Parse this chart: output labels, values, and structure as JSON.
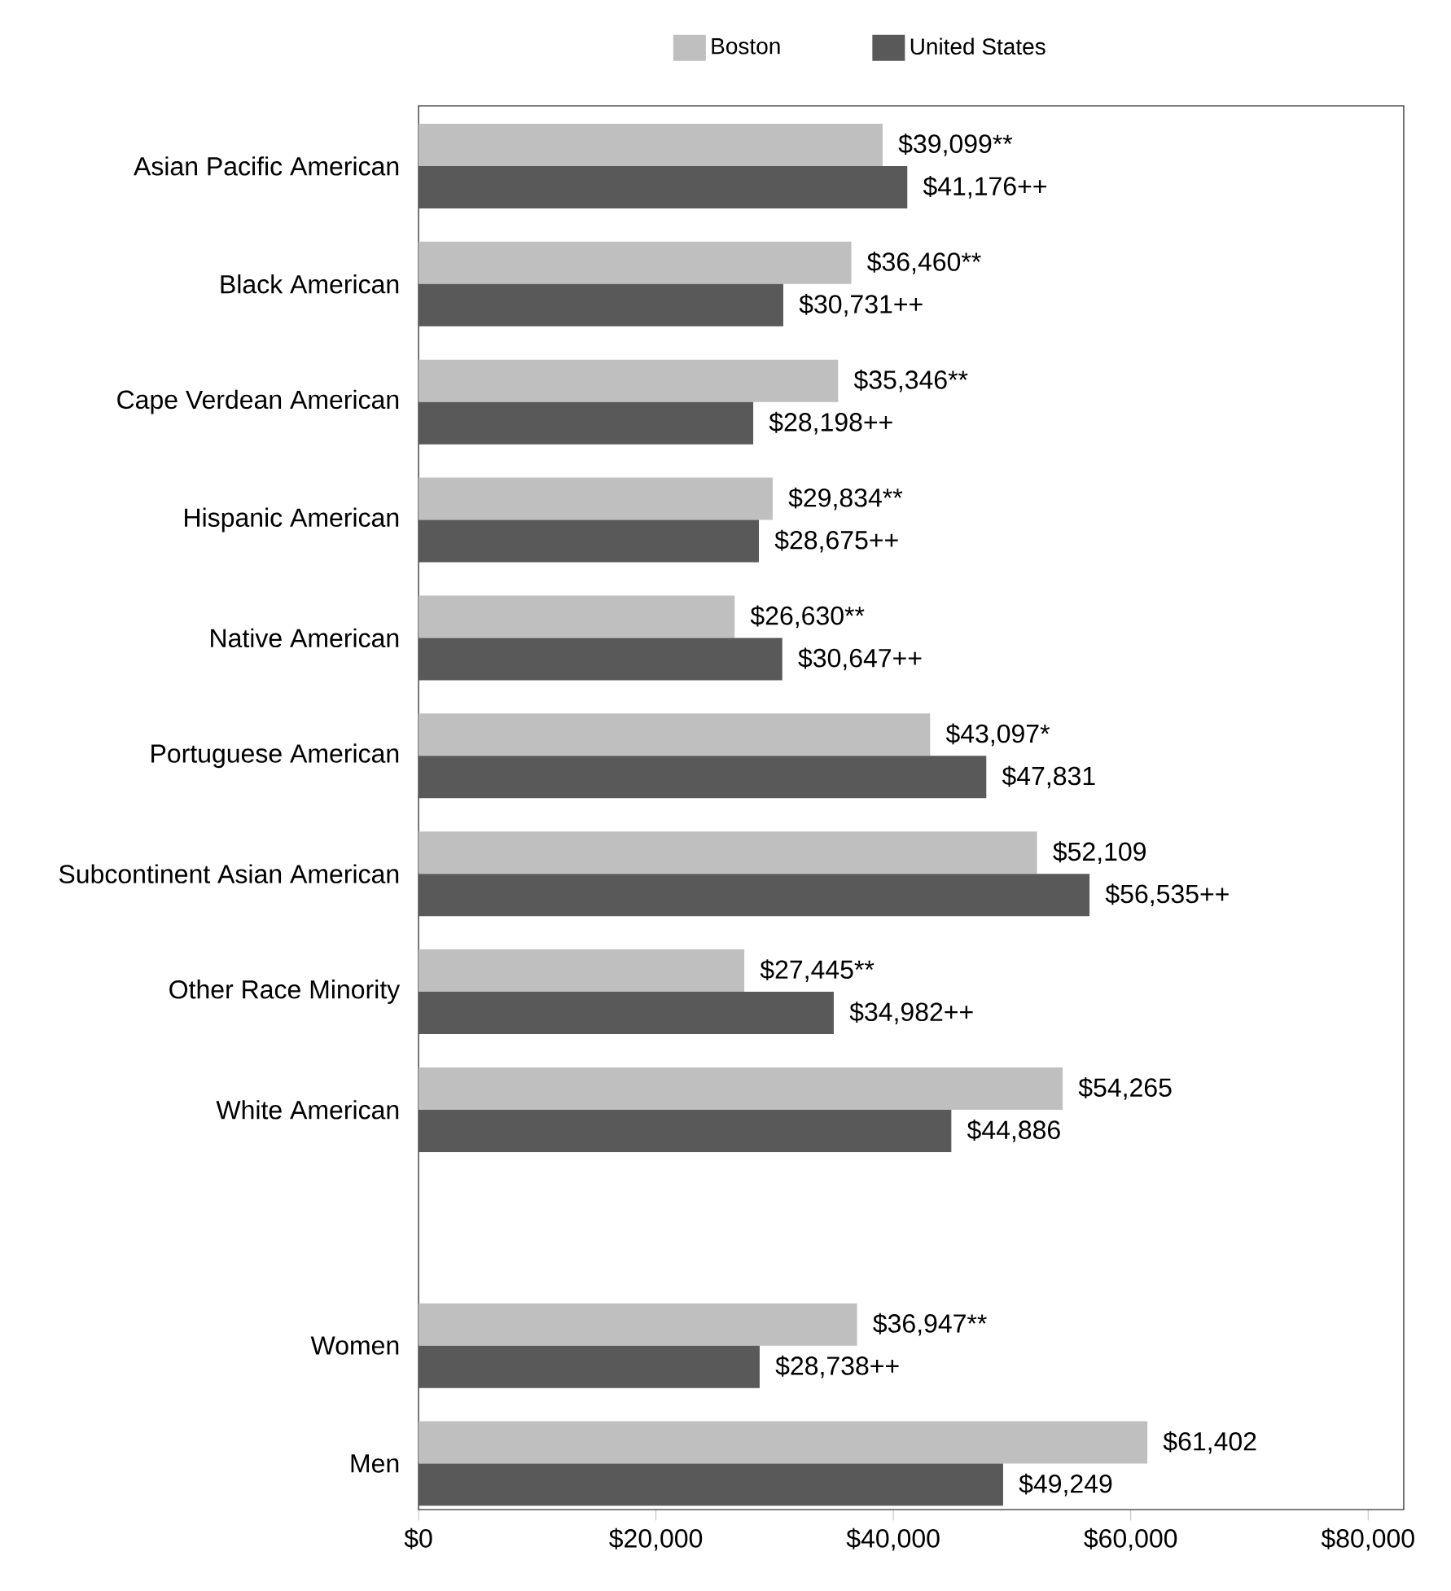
{
  "chart_data": {
    "type": "bar",
    "orientation": "horizontal",
    "categories": [
      "Asian Pacific American",
      "Black American",
      "Cape Verdean American",
      "Hispanic American",
      "Native American",
      "Portuguese American",
      "Subcontinent Asian American",
      "Other Race Minority",
      "White American",
      null,
      "Women",
      "Men"
    ],
    "series": [
      {
        "name": "Boston",
        "color": "#bfbfbf",
        "values": [
          39099,
          36460,
          35346,
          29834,
          26630,
          43097,
          52109,
          27445,
          54265,
          null,
          36947,
          61402
        ],
        "value_labels": [
          "$39,099**",
          "$36,460**",
          "$35,346**",
          "$29,834**",
          "$26,630**",
          "$43,097*",
          "$52,109",
          "$27,445**",
          "$54,265",
          null,
          "$36,947**",
          "$61,402"
        ]
      },
      {
        "name": "United States",
        "color": "#595959",
        "values": [
          41176,
          30731,
          28198,
          28675,
          30647,
          47831,
          56535,
          34982,
          44886,
          null,
          28738,
          49249
        ],
        "value_labels": [
          "$41,176++",
          "$30,731++",
          "$28,198++",
          "$28,675++",
          "$30,647++",
          "$47,831",
          "$56,535++",
          "$34,982++",
          "$44,886",
          null,
          "$28,738++",
          "$49,249"
        ]
      }
    ],
    "xlim": [
      0,
      83000
    ],
    "xticks": [
      {
        "value": 0,
        "label": "$0"
      },
      {
        "value": 20000,
        "label": "$20,000"
      },
      {
        "value": 40000,
        "label": "$40,000"
      },
      {
        "value": 60000,
        "label": "$60,000"
      },
      {
        "value": 80000,
        "label": "$80,000"
      }
    ],
    "legend": "top"
  }
}
